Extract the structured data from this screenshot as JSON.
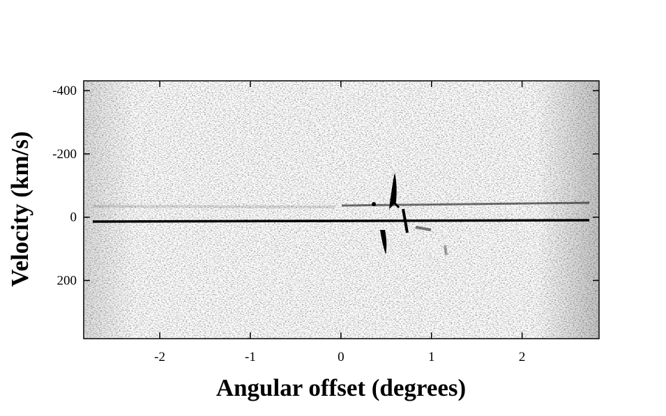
{
  "chart_data": {
    "type": "image",
    "xlabel": "Angular offset (degrees)",
    "ylabel": "Velocity (km/s)",
    "xlim": [
      -2.84,
      2.85
    ],
    "xticks": [
      -2,
      -1,
      0,
      1,
      2
    ],
    "ylim": [
      -431,
      384
    ],
    "y_inverted": true,
    "yticks": [
      -400,
      -200,
      0,
      200
    ],
    "colormap": "gray_r"
  }
}
